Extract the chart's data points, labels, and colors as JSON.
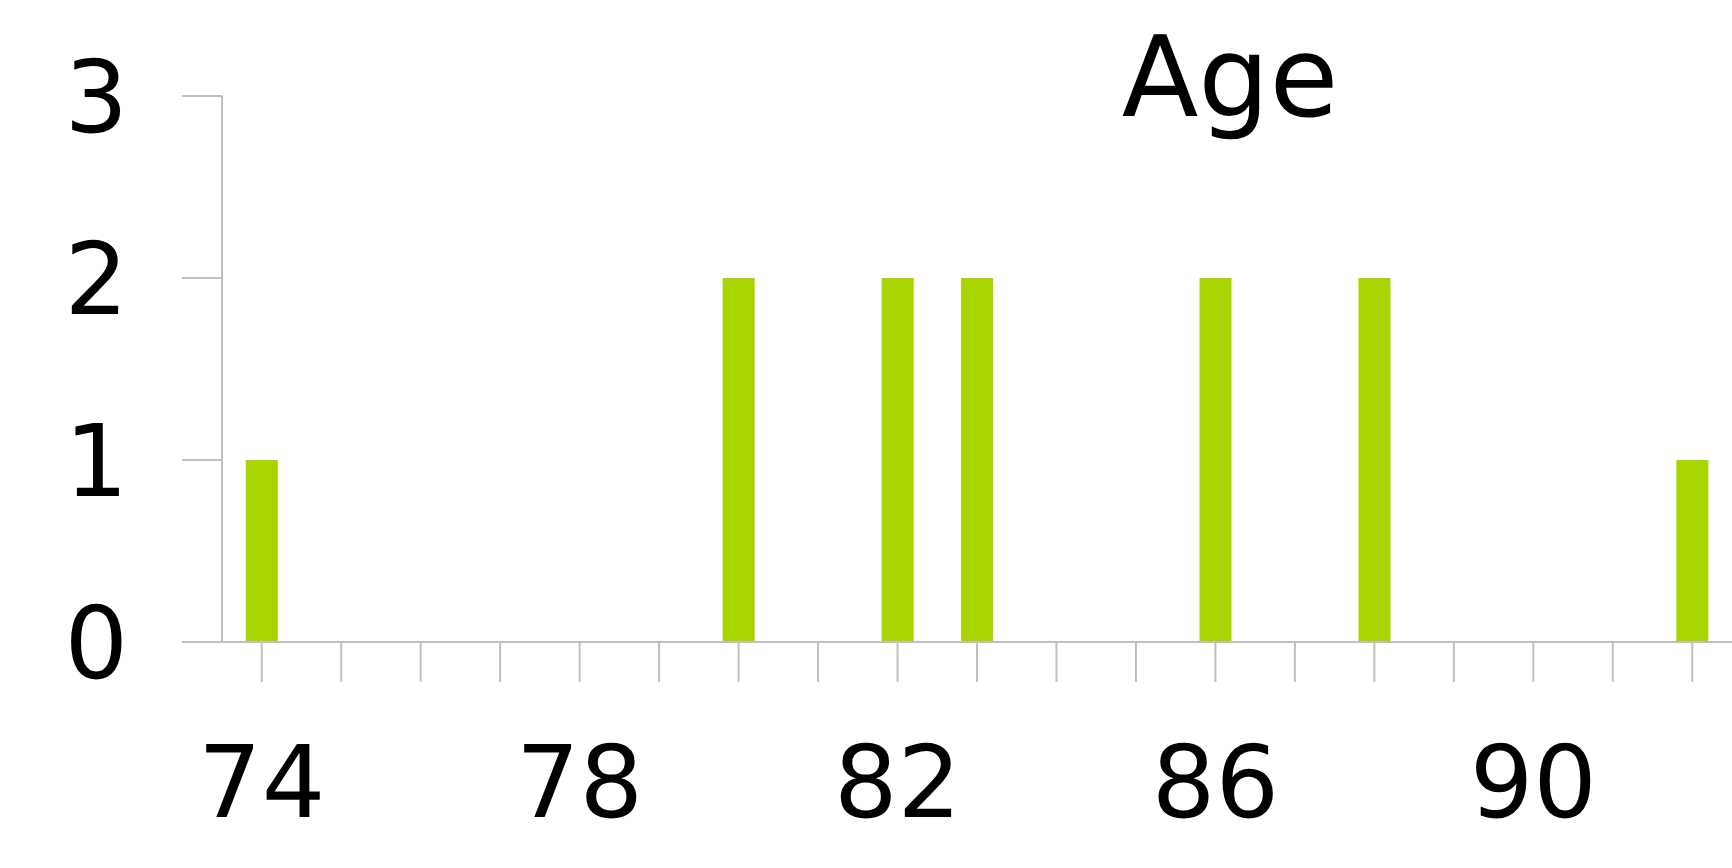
{
  "chart_data": {
    "type": "bar",
    "title": "Age",
    "categories": [
      "74",
      null,
      null,
      null,
      "78",
      null,
      null,
      null,
      "82",
      null,
      null,
      null,
      "86",
      null,
      null,
      null,
      "90",
      null,
      null
    ],
    "values": [
      1,
      0,
      0,
      0,
      0,
      0,
      2,
      0,
      2,
      2,
      0,
      0,
      2,
      0,
      2,
      0,
      0,
      0,
      1
    ],
    "color": "#a8d400",
    "ylim": [
      0,
      3
    ],
    "yticks": [
      0,
      1,
      2,
      3
    ]
  }
}
